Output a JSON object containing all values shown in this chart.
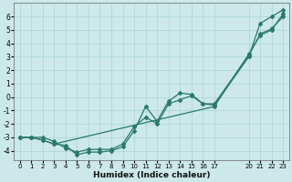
{
  "xlabel": "Humidex (Indice chaleur)",
  "bg_color": "#cce8e8",
  "grid_color": "#aad4d4",
  "line_color": "#2a7a6a",
  "xlim": [
    -0.5,
    23.5
  ],
  "ylim": [
    -4.7,
    7.0
  ],
  "xticks": [
    0,
    1,
    2,
    3,
    4,
    5,
    6,
    7,
    8,
    9,
    10,
    11,
    12,
    13,
    14,
    15,
    16,
    17,
    20,
    21,
    22,
    23
  ],
  "yticks": [
    -4,
    -3,
    -2,
    -1,
    0,
    1,
    2,
    3,
    4,
    5,
    6
  ],
  "series1_x": [
    0,
    1,
    2,
    3,
    4,
    5,
    6,
    7,
    8,
    9,
    10,
    11,
    12,
    13,
    14,
    15,
    16,
    17,
    20,
    21,
    22,
    23
  ],
  "series1_y": [
    -3.0,
    -3.0,
    -3.0,
    -3.3,
    -3.8,
    -4.1,
    -3.9,
    -3.9,
    -3.9,
    -3.5,
    -2.2,
    -1.5,
    -2.0,
    -0.5,
    -0.2,
    0.1,
    -0.5,
    -0.5,
    3.1,
    4.7,
    5.1,
    6.0
  ],
  "series2_x": [
    0,
    1,
    2,
    3,
    4,
    5,
    6,
    7,
    8,
    9,
    10,
    11,
    12,
    13,
    14,
    15,
    16,
    17,
    20,
    21,
    22,
    23
  ],
  "series2_y": [
    -3.0,
    -3.0,
    -3.2,
    -3.5,
    -3.6,
    -4.3,
    -4.1,
    -4.1,
    -4.0,
    -3.7,
    -2.5,
    -0.7,
    -1.8,
    -0.3,
    0.3,
    0.2,
    -0.5,
    -0.6,
    3.0,
    5.5,
    6.0,
    6.5
  ],
  "series3_x": [
    0,
    1,
    2,
    3,
    17,
    20,
    21,
    22,
    23
  ],
  "series3_y": [
    -3.0,
    -3.0,
    -3.2,
    -3.5,
    -0.7,
    3.2,
    4.6,
    5.0,
    6.2
  ]
}
